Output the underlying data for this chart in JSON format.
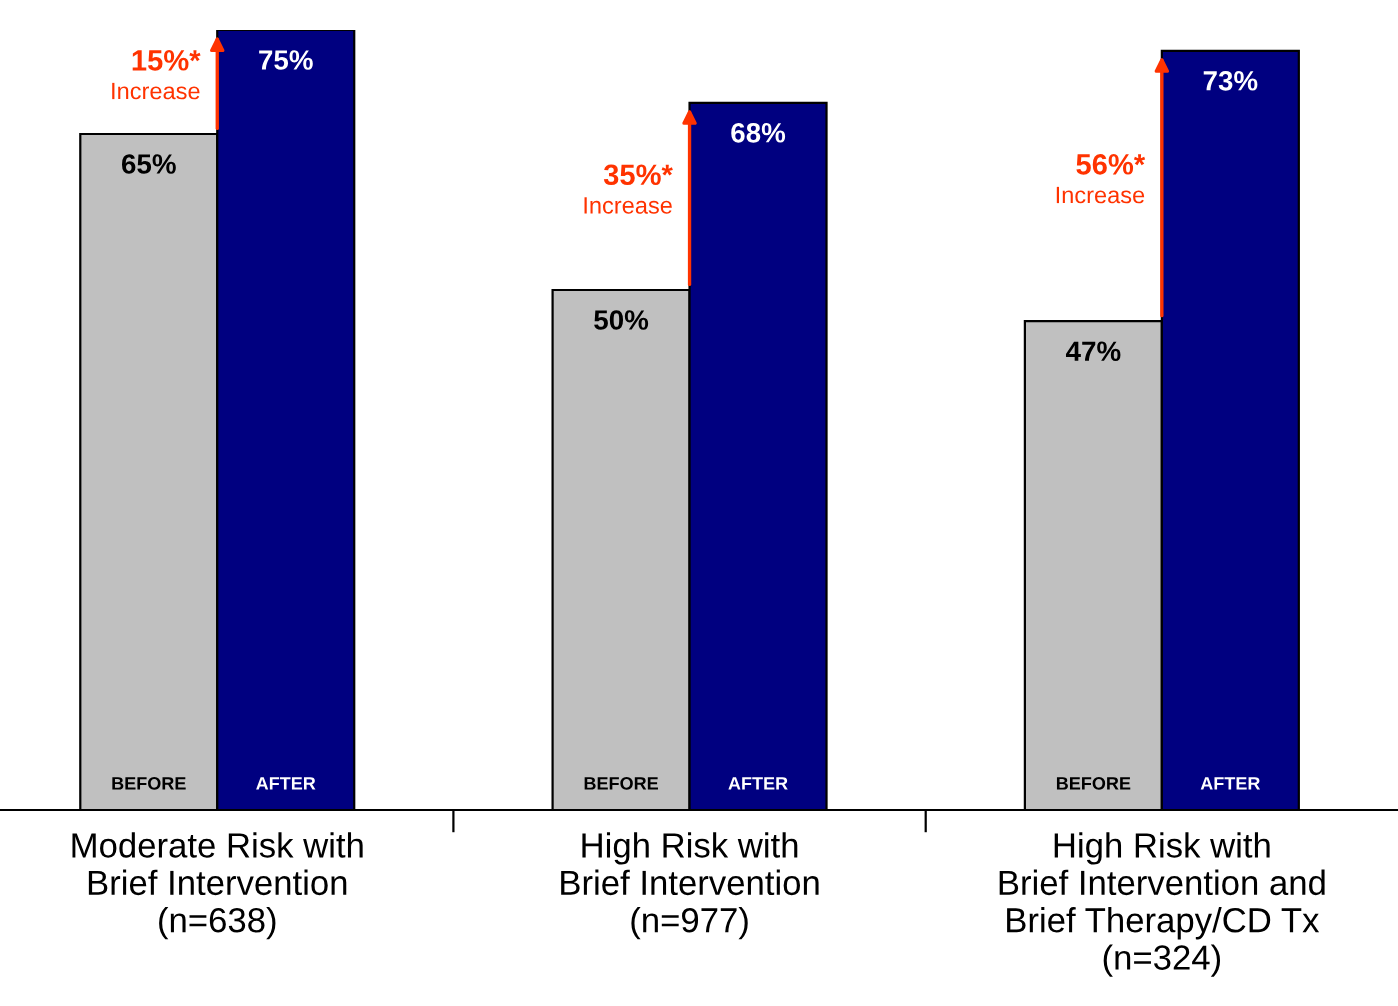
{
  "chart_data": {
    "type": "bar",
    "categories": [
      "Moderate Risk with\nBrief Intervention\n(n=638)",
      "High Risk with\nBrief Intervention\n(n=977)",
      "High Risk with\nBrief Intervention and\nBrief Therapy/CD Tx\n(n=324)"
    ],
    "series": [
      {
        "name": "BEFORE",
        "color": "#c0c0c0",
        "values": [
          65,
          50,
          47
        ],
        "value_labels": [
          "65%",
          "50%",
          "47%"
        ]
      },
      {
        "name": "AFTER",
        "color": "#000080",
        "values": [
          75,
          68,
          73
        ],
        "value_labels": [
          "75%",
          "68%",
          "73%"
        ]
      }
    ],
    "annotations": [
      "15%*\nIncrease",
      "35%*\nIncrease",
      "56%*\nIncrease"
    ],
    "legend": false,
    "grid": false
  }
}
